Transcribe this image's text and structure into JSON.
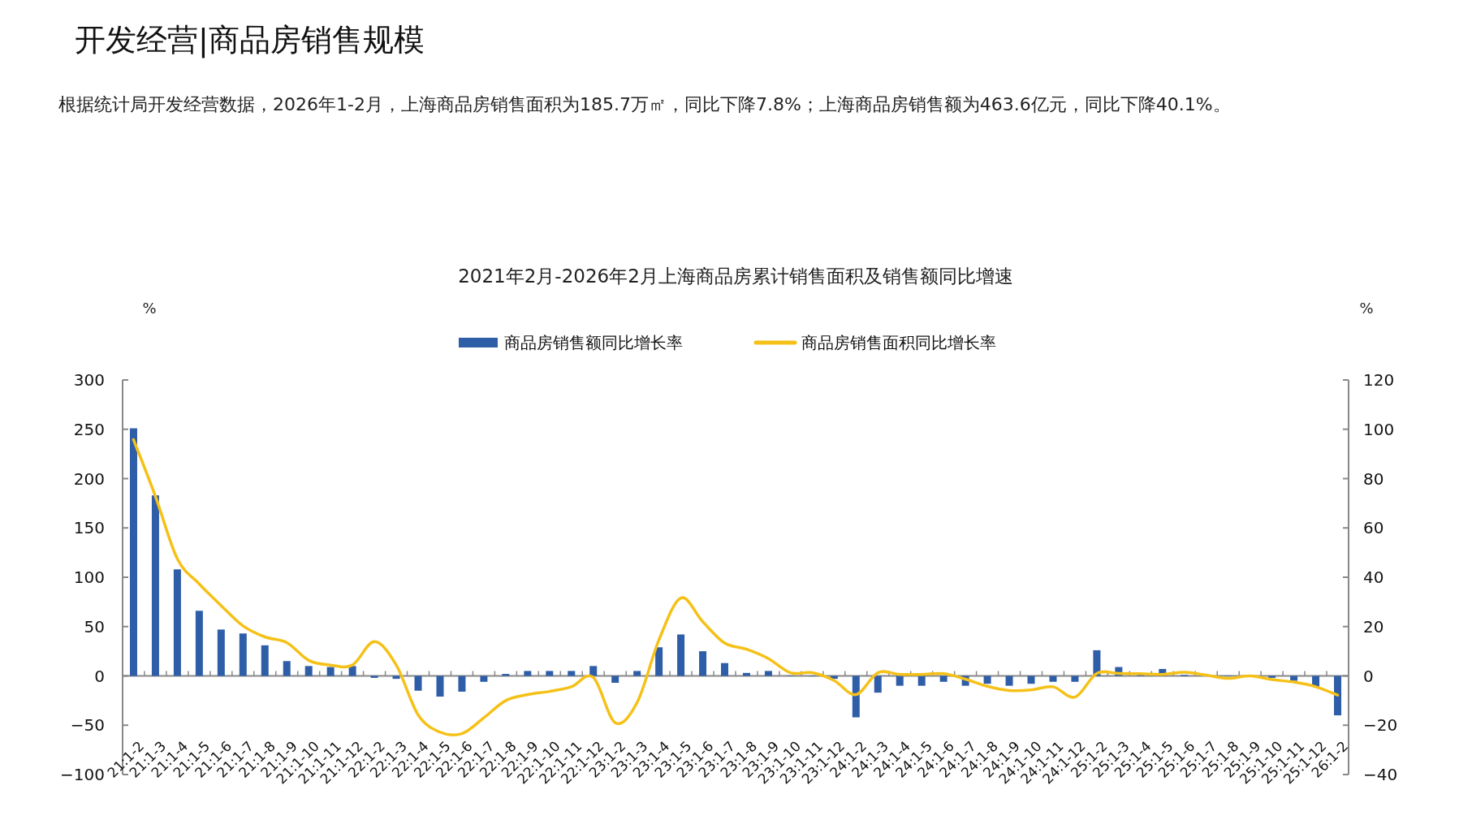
{
  "chart_data": {
    "type": "bar",
    "title": "开发经营|商品房销售规模",
    "subtitle": "2021年2月-2026年2月上海商品房累计销售面积及销售额同比增速",
    "annotations": [
      "根据统计局开发经营数据，2026年1-2月，上海商品房销售面积为185.7万㎡，同比下降7.8%；上海商品房销售额为463.6亿元，同比下降40.1%。"
    ],
    "ylabel": "%",
    "y2label": "%",
    "legend": "top",
    "categories": [
      "21:1-2",
      "21:1-3",
      "21:1-4",
      "21:1-5",
      "21:1-6",
      "21:1-7",
      "21:1-8",
      "21:1-9",
      "21:1-10",
      "21:1-11",
      "21:1-12",
      "22:1-2",
      "22:1-3",
      "22:1-4",
      "22:1-5",
      "22:1-6",
      "22:1-7",
      "22:1-8",
      "22:1-9",
      "22:1-10",
      "22:1-11",
      "22:1-12",
      "23:1-2",
      "23:1-3",
      "23:1-4",
      "23:1-5",
      "23:1-6",
      "23:1-7",
      "23:1-8",
      "23:1-9",
      "23:1-10",
      "23:1-11",
      "23:1-12",
      "24:1-2",
      "24:1-3",
      "24:1-4",
      "24:1-5",
      "24:1-6",
      "24:1-7",
      "24:1-8",
      "24:1-9",
      "24:1-10",
      "24:1-11",
      "24:1-12",
      "25:1-2",
      "25:1-3",
      "25:1-4",
      "25:1-5",
      "25:1-6",
      "25:1-7",
      "25:1-8",
      "25:1-9",
      "25:1-10",
      "25:1-11",
      "25:1-12",
      "26:1-2"
    ],
    "ylim": [
      -100,
      300
    ],
    "yticks": [
      -100,
      -50,
      0,
      50,
      100,
      150,
      200,
      250,
      300
    ],
    "y2lim": [
      -40,
      120
    ],
    "y2ticks": [
      -40,
      -20,
      0,
      20,
      40,
      60,
      80,
      100,
      120
    ],
    "series": [
      {
        "name": "商品房销售额同比增长率",
        "color": "#2f5ea8",
        "values": [
          251,
          183,
          108,
          66,
          47,
          43,
          31,
          15,
          10,
          9,
          10,
          -2,
          -3,
          -15,
          -21,
          -16,
          -6,
          2,
          5,
          5,
          5,
          10,
          -7,
          5,
          29,
          42,
          25,
          13,
          3,
          5,
          0,
          0,
          -3,
          -42,
          -17,
          -10,
          -10,
          -6,
          -10,
          -8,
          -10,
          -8,
          -6,
          -6,
          26,
          9,
          1,
          7,
          1,
          0,
          0,
          0,
          -2,
          -5,
          -11,
          -40
        ]
      },
      {
        "name": "商品房销售面积同比增长率",
        "type": "line",
        "axis": "y2",
        "color": "#f5c118",
        "values": [
          95.8,
          72.8,
          47.5,
          37.3,
          28.5,
          20.3,
          15.8,
          13.5,
          6.3,
          4.4,
          4.4,
          13.9,
          4.4,
          -15.8,
          -22.8,
          -23.4,
          -17,
          -10,
          -7.6,
          -6.3,
          -4.4,
          -0.6,
          -19,
          -10.8,
          14.6,
          31.6,
          22,
          13.3,
          10.8,
          7,
          1.3,
          1.3,
          -1.9,
          -7.6,
          1.3,
          0.6,
          0.6,
          0.9,
          -1.3,
          -4.2,
          -5.9,
          -5.7,
          -4.4,
          -8.6,
          1,
          1,
          0.9,
          0.6,
          1.5,
          0.3,
          -1,
          0,
          -1.5,
          -2.5,
          -4.4,
          -7.8
        ]
      }
    ]
  }
}
